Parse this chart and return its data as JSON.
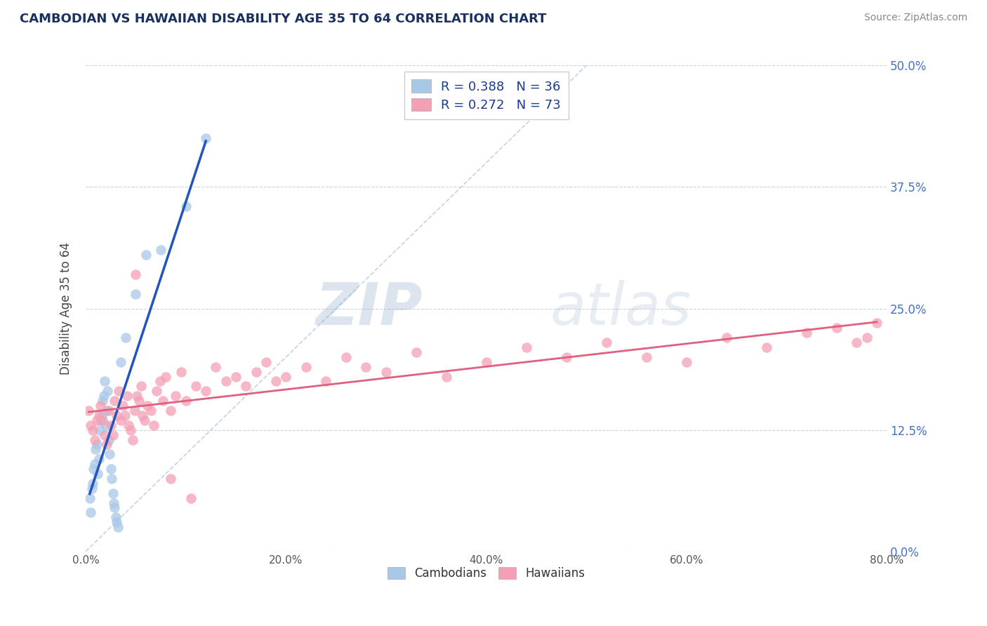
{
  "title": "CAMBODIAN VS HAWAIIAN DISABILITY AGE 35 TO 64 CORRELATION CHART",
  "source_text": "Source: ZipAtlas.com",
  "xlabel_vals": [
    0.0,
    20.0,
    40.0,
    60.0,
    80.0
  ],
  "ylabel_vals": [
    0.0,
    12.5,
    25.0,
    37.5,
    50.0
  ],
  "ylabel_label": "Disability Age 35 to 64",
  "xlim": [
    0.0,
    80.0
  ],
  "ylim": [
    0.0,
    50.0
  ],
  "cambodian_color": "#a8c8e8",
  "hawaiian_color": "#f4a0b4",
  "cambodian_line_color": "#2255bb",
  "hawaiian_line_color": "#e06080",
  "dashed_line_color": "#b8c8d8",
  "legend_text1": "R = 0.388   N = 36",
  "legend_text2": "R = 0.272   N = 73",
  "watermark_zip": "ZIP",
  "watermark_atlas": "atlas",
  "legend_box_color": "#e8e8e8",
  "camb_x": [
    0.4,
    0.5,
    0.6,
    0.7,
    0.8,
    0.9,
    1.0,
    1.1,
    1.2,
    1.3,
    1.4,
    1.5,
    1.6,
    1.7,
    1.8,
    1.9,
    2.0,
    2.1,
    2.2,
    2.3,
    2.4,
    2.5,
    2.6,
    2.7,
    2.8,
    2.9,
    3.0,
    3.1,
    3.2,
    3.5,
    4.0,
    5.0,
    6.0,
    7.5,
    10.0,
    12.0
  ],
  "camb_y": [
    5.5,
    4.0,
    6.5,
    7.0,
    8.5,
    9.0,
    10.5,
    11.0,
    8.0,
    9.5,
    12.5,
    13.5,
    14.0,
    15.5,
    16.0,
    17.5,
    13.0,
    14.5,
    16.5,
    11.5,
    10.0,
    8.5,
    7.5,
    6.0,
    5.0,
    4.5,
    3.5,
    3.0,
    2.5,
    19.5,
    22.0,
    26.5,
    30.5,
    31.0,
    35.5,
    42.5
  ],
  "haw_x": [
    0.3,
    0.5,
    0.7,
    0.9,
    1.1,
    1.3,
    1.5,
    1.7,
    1.9,
    2.1,
    2.3,
    2.5,
    2.7,
    2.9,
    3.1,
    3.3,
    3.5,
    3.7,
    3.9,
    4.1,
    4.3,
    4.5,
    4.7,
    4.9,
    5.1,
    5.3,
    5.5,
    5.7,
    5.9,
    6.2,
    6.5,
    6.8,
    7.1,
    7.4,
    7.7,
    8.0,
    8.5,
    9.0,
    9.5,
    10.0,
    11.0,
    12.0,
    13.0,
    14.0,
    15.0,
    16.0,
    17.0,
    18.0,
    19.0,
    20.0,
    22.0,
    24.0,
    26.0,
    28.0,
    30.0,
    33.0,
    36.0,
    40.0,
    44.0,
    48.0,
    52.0,
    56.0,
    60.0,
    64.0,
    68.0,
    72.0,
    75.0,
    77.0,
    78.0,
    79.0,
    5.0,
    8.5,
    10.5
  ],
  "haw_y": [
    14.5,
    13.0,
    12.5,
    11.5,
    13.5,
    14.0,
    15.0,
    13.5,
    12.0,
    11.0,
    14.5,
    13.0,
    12.0,
    15.5,
    14.0,
    16.5,
    13.5,
    15.0,
    14.0,
    16.0,
    13.0,
    12.5,
    11.5,
    14.5,
    16.0,
    15.5,
    17.0,
    14.0,
    13.5,
    15.0,
    14.5,
    13.0,
    16.5,
    17.5,
    15.5,
    18.0,
    14.5,
    16.0,
    18.5,
    15.5,
    17.0,
    16.5,
    19.0,
    17.5,
    18.0,
    17.0,
    18.5,
    19.5,
    17.5,
    18.0,
    19.0,
    17.5,
    20.0,
    19.0,
    18.5,
    20.5,
    18.0,
    19.5,
    21.0,
    20.0,
    21.5,
    20.0,
    19.5,
    22.0,
    21.0,
    22.5,
    23.0,
    21.5,
    22.0,
    23.5,
    28.5,
    7.5,
    5.5
  ]
}
